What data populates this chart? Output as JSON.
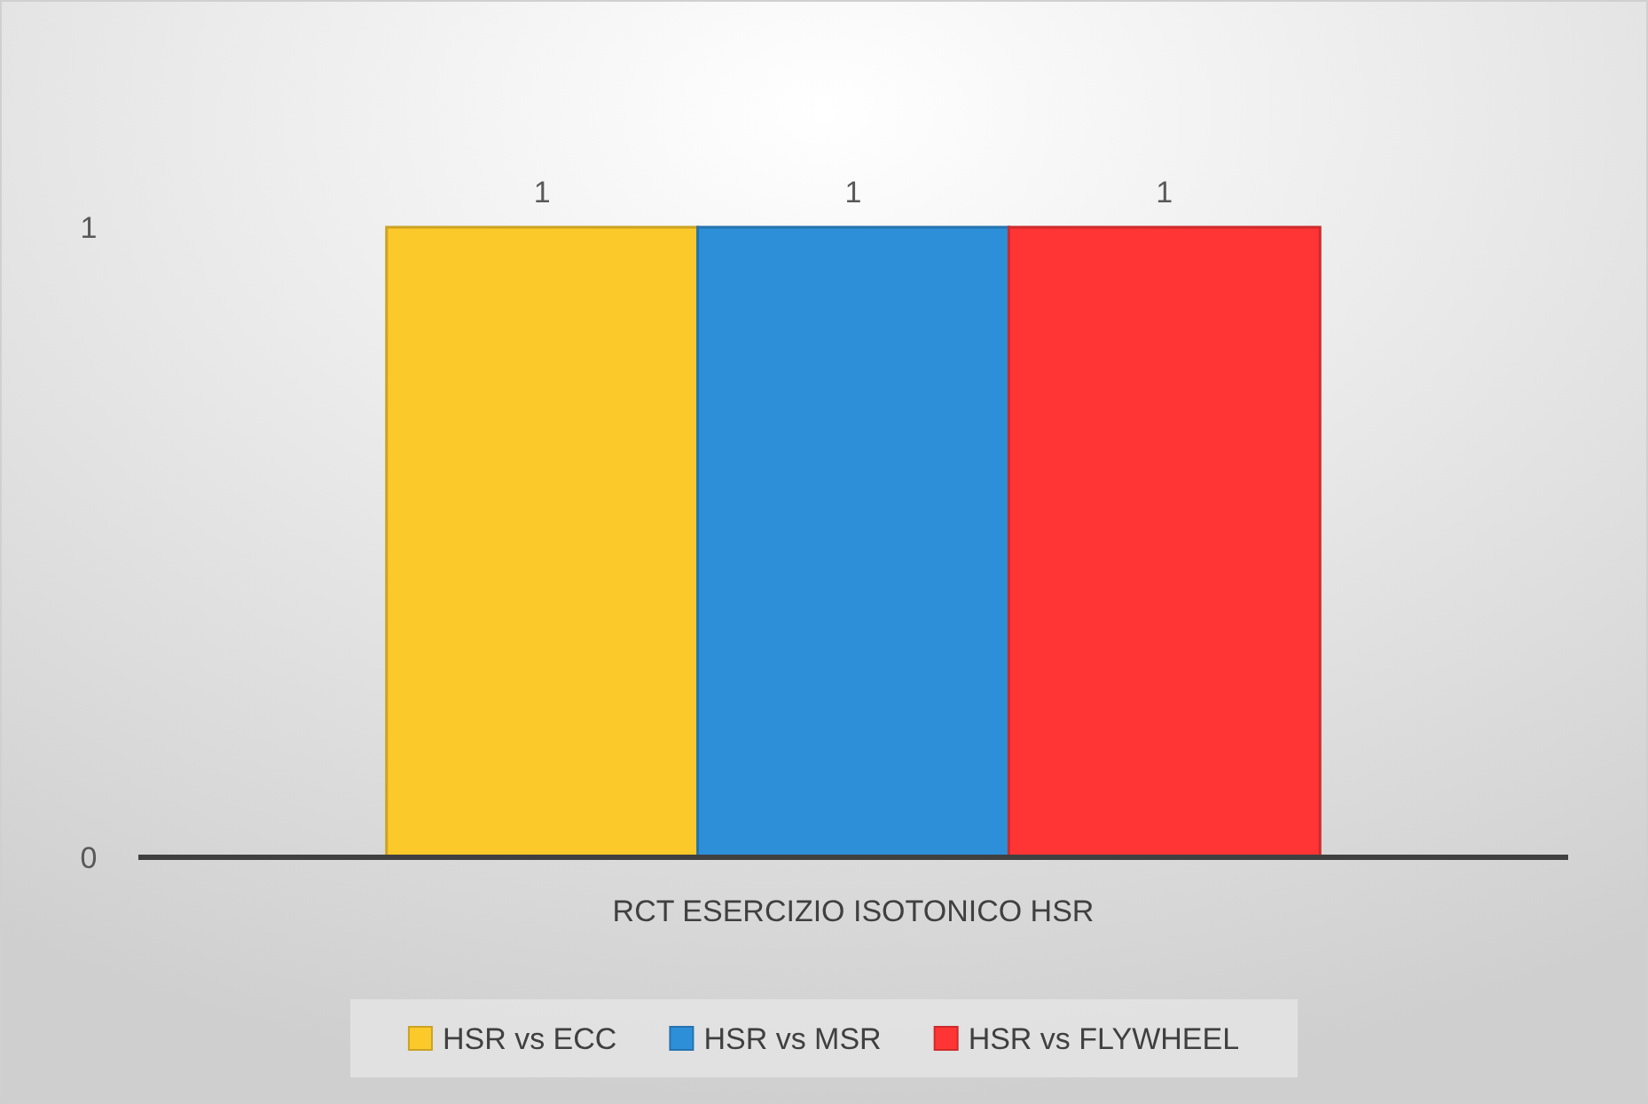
{
  "chart_data": {
    "type": "bar",
    "categories": [
      "RCT ESERCIZIO ISOTONICO HSR"
    ],
    "series": [
      {
        "name": "HSR vs ECC",
        "color": "#fcc92a",
        "values": [
          1
        ]
      },
      {
        "name": "HSR vs MSR",
        "color": "#2e8fd9",
        "values": [
          1
        ]
      },
      {
        "name": "HSR vs FLYWHEEL",
        "color": "#ff3535",
        "values": [
          1
        ]
      }
    ],
    "ylim": [
      0,
      1
    ],
    "yticks": [
      0,
      1
    ],
    "data_labels": true,
    "legend": "bottom"
  }
}
